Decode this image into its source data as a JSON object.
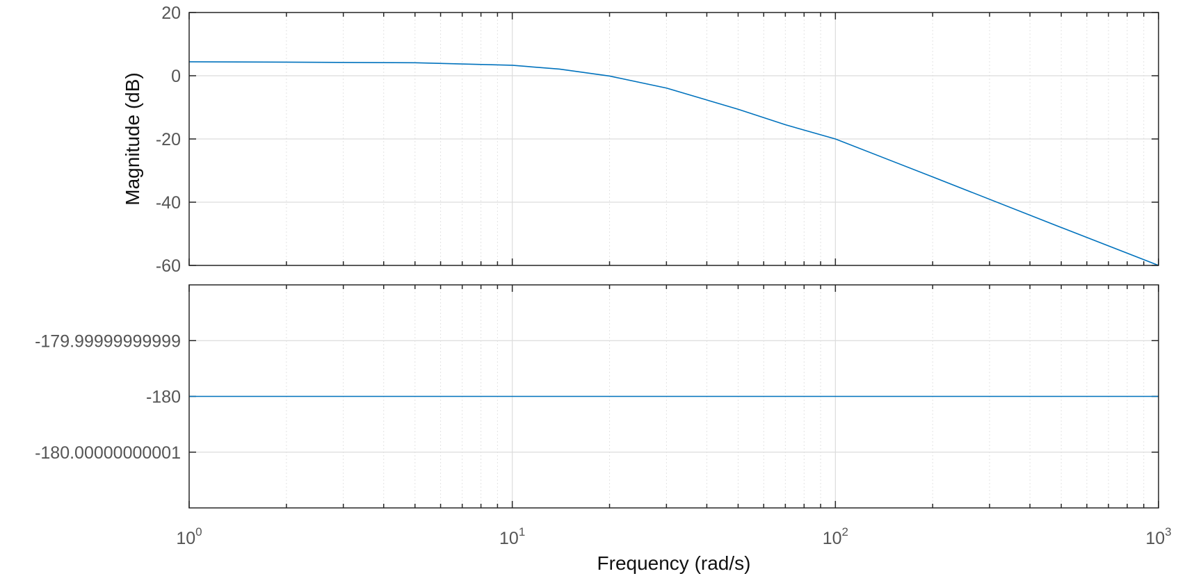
{
  "chart_data": [
    {
      "type": "line",
      "name": "magnitude",
      "xscale": "log",
      "xlim": [
        1,
        1000
      ],
      "ylim": [
        -60,
        20
      ],
      "yticks": [
        20,
        0,
        -20,
        -40,
        -60
      ],
      "ytick_labels": [
        "20",
        "0",
        "-20",
        "-40",
        "-60"
      ],
      "ylabel": "Magnitude (dB)",
      "grid": true,
      "series": [
        {
          "color": "#0072BD",
          "x": [
            1,
            2,
            5,
            10,
            14,
            20,
            30,
            50,
            70,
            100,
            200,
            500,
            1000
          ],
          "y": [
            4.4,
            4.3,
            4.1,
            3.3,
            2.1,
            -0.1,
            -3.9,
            -10.6,
            -15.5,
            -20.0,
            -32.0,
            -48.0,
            -60.0
          ]
        }
      ]
    },
    {
      "type": "line",
      "name": "phase",
      "xscale": "log",
      "xlim": [
        1,
        1000
      ],
      "ylim": [
        -180.00000000002,
        -179.99999999998
      ],
      "yticks": [
        -179.99999999999,
        -180,
        -180.00000000001
      ],
      "ytick_labels": [
        "-179.99999999999",
        "-180",
        "-180.00000000001"
      ],
      "ylabel": "",
      "xlabel": "Frequency  (rad/s)",
      "xtick_labels": [
        {
          "base": "10",
          "exp": "0"
        },
        {
          "base": "10",
          "exp": "1"
        },
        {
          "base": "10",
          "exp": "2"
        },
        {
          "base": "10",
          "exp": "3"
        }
      ],
      "grid": true,
      "series": [
        {
          "color": "#0072BD",
          "x": [
            1,
            10,
            20,
            100,
            1000
          ],
          "y": [
            -180,
            -180,
            -180,
            -180,
            -180
          ]
        }
      ]
    }
  ]
}
